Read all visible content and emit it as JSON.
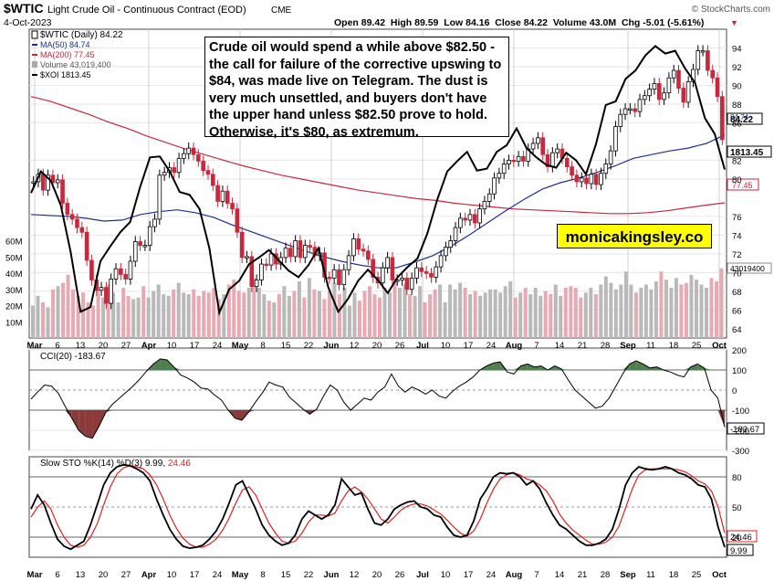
{
  "header": {
    "symbol": "$WTIC",
    "name": "Light Crude Oil - Continuous Contract (EOD)",
    "exchange": "CME",
    "date": "4-Oct-2023",
    "watermark": "© StockCharts.com",
    "ohlc": "Open 89.42  High 89.59  Low 84.16  Close 84.22  Volume 43.0M  Chg -5.01 (-5.61%)",
    "chg_arrow": "▼"
  },
  "legend": [
    {
      "id": "wtic",
      "text": "$WTIC (Daily) 84.22",
      "color": "#000000"
    },
    {
      "id": "ma50",
      "text": "MA(50) 84.74",
      "color": "#1f2f8f"
    },
    {
      "id": "ma200",
      "text": "MA(200) 77.45",
      "color": "#c8283c"
    },
    {
      "id": "volume",
      "text": "Volume 43,019,400",
      "color": "#888888"
    },
    {
      "id": "xoi",
      "text": "$XOI 1813.45",
      "color": "#000000"
    }
  ],
  "annotation": "Crude oil would spend a while above $82.50 - the call for failure of the corrective upswing to $84, was made live on Telegram. The dust is very much unsettled, and buyers don't have the upper hand unless $82.50 prove to hold. Otherwise, it's $80, as extremum.",
  "brand_box": "monicakingsley.co",
  "x_labels": [
    "Mar",
    "6",
    "13",
    "20",
    "27",
    "Apr",
    "10",
    "17",
    "24",
    "May",
    "8",
    "15",
    "22",
    "Jun",
    "12",
    "20",
    "26",
    "Jul",
    "10",
    "17",
    "24",
    "Aug",
    "7",
    "14",
    "21",
    "28",
    "Sep",
    "11",
    "18",
    "25",
    "Oct"
  ],
  "price_axis_ticks": [
    "94",
    "92",
    "90",
    "88",
    "86",
    "82",
    "80",
    "76",
    "74",
    "72",
    "70",
    "68",
    "66",
    "64"
  ],
  "volume_axis_ticks": [
    "60M",
    "50M",
    "40M",
    "30M",
    "20M",
    "10M"
  ],
  "price_last_labels": {
    "wtic": "84.22",
    "ma50": "84.74",
    "xoi": "1813.45",
    "ma200": "77.45",
    "volume": "43019400"
  },
  "cci": {
    "legend": "CCI(20) -183.67",
    "ticks": [
      "200",
      "100",
      "0",
      "-100",
      "-200",
      "-300"
    ],
    "last": "-183.67"
  },
  "sto": {
    "legend_prefix": "Slow STO %K(14) %D(3) ",
    "k_text": "9.99",
    "d_text": "24.46",
    "ticks": [
      "80",
      "50",
      "20"
    ],
    "last_k": "9.99",
    "last_d": "24.46"
  },
  "colors": {
    "up": "#ffffff",
    "down": "#c8283c",
    "ma50": "#1f2f8f",
    "ma200": "#c8283c",
    "cci_pos": "#4f7f4f",
    "cci_neg": "#8b3a3a",
    "sto_d": "#e02020",
    "brand": "#ffff00"
  },
  "chart_data": {
    "type": "candlestick",
    "title": "$WTIC Light Crude Oil - Continuous Contract (EOD)",
    "price_range": [
      63,
      96
    ],
    "series": [
      {
        "name": "$WTIC close",
        "values": [
          79.7,
          80.5,
          78.8,
          80.4,
          79.6,
          79.9,
          77.4,
          76.2,
          75.7,
          74.8,
          74.3,
          71.3,
          69.2,
          68.1,
          68.4,
          66.7,
          69.3,
          70.4,
          69.8,
          69.3,
          71.2,
          73.3,
          72.9,
          72.9,
          74.9,
          75.7,
          80.4,
          80.7,
          81.2,
          80.7,
          82.2,
          82.7,
          83.3,
          82.6,
          81.9,
          80.9,
          80.5,
          79.3,
          77.6,
          78.7,
          77.4,
          76.8,
          74.3,
          71.6,
          71.7,
          68.5,
          69.2,
          70.9,
          70.8,
          72.0,
          70.9,
          71.6,
          72.6,
          71.7,
          73.4,
          71.6,
          72.9,
          72.7,
          71.8,
          72.1,
          69.5,
          69.4,
          70.3,
          68.7,
          70.3,
          71.8,
          73.6,
          72.5,
          72.3,
          71.4,
          69.5,
          68.9,
          70.5,
          71.6,
          69.2,
          69.2,
          69.4,
          68.2,
          69.4,
          70.5,
          70.1,
          69.9,
          69.5,
          70.6,
          71.8,
          72.7,
          73.4,
          74.8,
          75.8,
          75.6,
          76.2,
          75.3,
          76.8,
          77.6,
          78.4,
          80.1,
          80.6,
          81.6,
          82.0,
          81.9,
          82.4,
          81.9,
          83.2,
          83.8,
          84.4,
          82.6,
          81.3,
          82.8,
          83.2,
          82.2,
          81.3,
          80.4,
          79.7,
          80.1,
          79.5,
          80.5,
          79.4,
          80.6,
          81.6,
          83.0,
          85.6,
          86.9,
          87.5,
          87.5,
          87.2,
          88.5,
          88.9,
          89.6,
          90.2,
          88.5,
          89.2,
          90.8,
          91.6,
          89.7,
          88.2,
          90.4,
          91.7,
          93.7,
          93.7,
          91.6,
          90.8,
          88.8,
          84.2
        ]
      },
      {
        "name": "MA(50)",
        "values": [
          76.2,
          76.1,
          76.0,
          75.8,
          75.5,
          75.6,
          76.2,
          76.5,
          76.7,
          76.4,
          75.9,
          75.1,
          74.4,
          73.7,
          73.0,
          72.3,
          71.7,
          71.2,
          70.8,
          70.5,
          70.5,
          71.1,
          71.8,
          72.8,
          74.0,
          75.3,
          76.6,
          77.8,
          78.9,
          79.6,
          80.1,
          80.7,
          81.4,
          82.2,
          82.6,
          83.0,
          83.3,
          83.8,
          84.7
        ]
      },
      {
        "name": "MA(200)",
        "values": [
          88.8,
          88.3,
          87.6,
          86.9,
          86.1,
          85.4,
          84.6,
          83.9,
          83.2,
          82.6,
          82.0,
          81.4,
          80.9,
          80.4,
          80.0,
          79.6,
          79.2,
          78.8,
          78.5,
          78.2,
          77.9,
          77.7,
          77.4,
          77.2,
          77.0,
          76.8,
          76.7,
          76.6,
          76.5,
          76.4,
          76.3,
          76.3,
          76.4,
          76.6,
          76.9,
          77.2,
          77.45
        ]
      },
      {
        "name": "$XOI",
        "values": [
          78.5,
          80.8,
          79.8,
          77.2,
          72.2,
          65.8,
          66.3,
          71.2,
          72.8,
          74.3,
          75.4,
          79.1,
          82.3,
          82.4,
          80.8,
          78.6,
          78.3,
          76.8,
          72.6,
          65.7,
          68.2,
          69.1,
          70.9,
          71.6,
          72.4,
          71.3,
          70.2,
          69.5,
          70.8,
          72.6,
          68.4,
          65.8,
          67.2,
          69.1,
          70.3,
          69.2,
          67.8,
          69.5,
          70.6,
          71.5,
          74.2,
          77.8,
          80.8,
          81.9,
          82.9,
          80.9,
          81.1,
          82.9,
          83.6,
          85.4,
          83.3,
          82.3,
          81.5,
          81.2,
          82.8,
          82.0,
          80.5,
          83.7,
          87.9,
          88.3,
          90.7,
          91.6,
          93.2,
          94.2,
          93.4,
          93.7,
          91.8,
          90.3,
          86.5,
          84.8,
          81.0
        ]
      },
      {
        "name": "Volume (M)",
        "values": [
          20,
          26,
          22,
          19,
          30,
          32,
          34,
          39,
          30,
          26,
          28,
          22,
          20,
          30,
          25,
          33,
          28,
          22,
          31,
          26,
          24,
          25,
          32,
          25,
          29,
          33,
          27,
          26,
          30,
          34,
          28,
          27,
          30,
          26,
          29,
          28,
          31,
          24,
          27,
          33,
          36,
          29,
          28,
          31,
          37,
          31,
          27,
          23,
          22,
          27,
          32,
          26,
          29,
          35,
          25,
          37,
          30,
          29,
          24,
          29,
          34,
          27,
          31,
          20,
          28,
          23,
          29,
          32,
          27,
          25,
          31,
          28,
          37,
          31,
          33,
          27,
          26,
          32,
          22,
          27,
          30,
          33,
          22,
          33,
          30,
          34,
          31,
          27,
          29,
          26,
          28,
          30,
          30,
          28,
          32,
          35,
          25,
          28,
          31,
          27,
          31,
          26,
          29,
          27,
          33,
          26,
          31,
          32,
          31,
          25,
          28,
          31,
          27,
          33,
          38,
          34,
          30,
          33,
          41,
          33,
          28,
          31,
          33,
          30,
          35,
          41,
          36,
          31,
          37,
          33,
          34,
          39,
          36,
          33,
          31,
          37,
          35,
          43
        ]
      }
    ],
    "cci": {
      "range": [
        -300,
        200
      ],
      "values": [
        -45,
        -8,
        25,
        20,
        -15,
        -80,
        -140,
        -200,
        -230,
        -240,
        -180,
        -110,
        -70,
        -40,
        -10,
        20,
        55,
        95,
        130,
        155,
        150,
        115,
        75,
        60,
        40,
        10,
        5,
        -25,
        -50,
        -100,
        -140,
        -150,
        -110,
        -60,
        -15,
        40,
        25,
        15,
        -35,
        -65,
        -95,
        -120,
        -95,
        -30,
        25,
        0,
        -60,
        -100,
        -70,
        -40,
        -50,
        -10,
        15,
        80,
        20,
        -10,
        15,
        0,
        -20,
        0,
        -30,
        -40,
        -5,
        20,
        40,
        65,
        100,
        120,
        135,
        140,
        90,
        80,
        120,
        130,
        115,
        120,
        100,
        120,
        105,
        50,
        0,
        -30,
        -60,
        -90,
        -80,
        -40,
        20,
        80,
        130,
        145,
        130,
        110,
        115,
        100,
        90,
        75,
        65,
        115,
        130,
        110,
        0,
        -40,
        -184
      ]
    },
    "sto": {
      "range": [
        0,
        100
      ],
      "k": [
        48,
        62,
        52,
        34,
        18,
        11,
        8,
        12,
        16,
        32,
        52,
        72,
        84,
        90,
        92,
        91,
        88,
        84,
        76,
        58,
        42,
        28,
        18,
        11,
        9,
        10,
        12,
        18,
        26,
        38,
        54,
        72,
        76,
        62,
        48,
        32,
        22,
        16,
        12,
        14,
        22,
        38,
        46,
        42,
        38,
        42,
        52,
        78,
        70,
        62,
        64,
        48,
        34,
        32,
        38,
        48,
        52,
        55,
        56,
        50,
        48,
        42,
        40,
        30,
        22,
        20,
        22,
        36,
        58,
        68,
        80,
        84,
        83,
        84,
        80,
        72,
        76,
        68,
        54,
        42,
        32,
        28,
        22,
        16,
        12,
        12,
        14,
        18,
        28,
        48,
        72,
        84,
        90,
        88,
        87,
        88,
        90,
        88,
        84,
        82,
        78,
        72,
        70,
        58,
        30,
        10
      ],
      "d": [
        40,
        50,
        56,
        48,
        32,
        20,
        12,
        10,
        12,
        20,
        33,
        52,
        70,
        83,
        89,
        91,
        90,
        88,
        82,
        72,
        58,
        42,
        29,
        19,
        13,
        10,
        10,
        13,
        18,
        27,
        39,
        54,
        67,
        70,
        62,
        48,
        34,
        24,
        16,
        14,
        16,
        24,
        35,
        42,
        42,
        41,
        44,
        56,
        66,
        70,
        65,
        58,
        48,
        38,
        34,
        40,
        47,
        51,
        53,
        53,
        51,
        47,
        43,
        37,
        30,
        24,
        21,
        26,
        38,
        54,
        68,
        78,
        82,
        84,
        82,
        78,
        76,
        72,
        66,
        56,
        43,
        34,
        27,
        22,
        17,
        13,
        13,
        15,
        20,
        31,
        49,
        68,
        82,
        87,
        88,
        88,
        88,
        88,
        87,
        85,
        81,
        76,
        73,
        66,
        50,
        24
      ]
    }
  }
}
